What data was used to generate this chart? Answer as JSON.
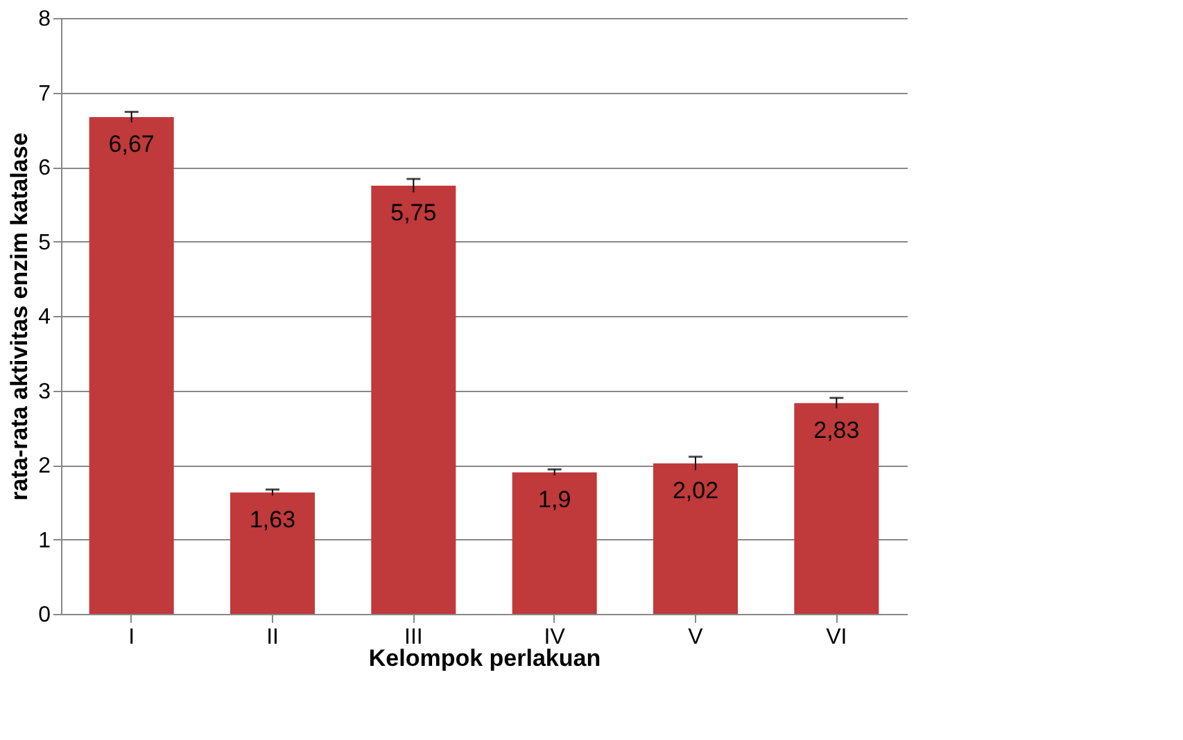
{
  "chart_data": {
    "type": "bar",
    "xlabel": "Kelompok  perlakuan",
    "ylabel": "rata-rata aktivitas enzim katalase",
    "categories": [
      "I",
      "II",
      "III",
      "IV",
      "V",
      "VI"
    ],
    "values": [
      6.67,
      1.63,
      5.75,
      1.9,
      2.02,
      2.83
    ],
    "errors": [
      0.07,
      0.04,
      0.09,
      0.04,
      0.09,
      0.07
    ],
    "value_labels": [
      "6,67",
      "1,63",
      "5,75",
      "1,9",
      "2,02",
      "2,83"
    ],
    "color": "#c0393b",
    "ylim": [
      0,
      8
    ],
    "yticks": [
      0,
      1,
      2,
      3,
      4,
      5,
      6,
      7,
      8
    ],
    "grid": "y"
  }
}
